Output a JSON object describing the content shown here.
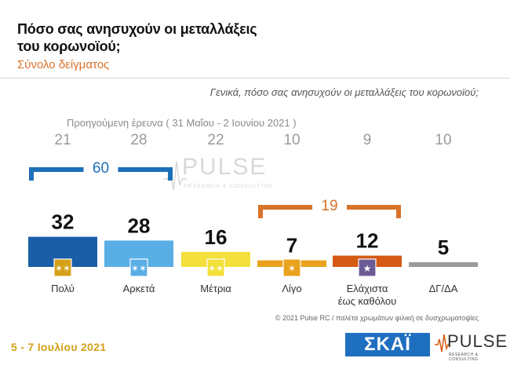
{
  "header": {
    "title_line1": "Πόσο σας ανησυχούν οι μεταλλάξεις",
    "title_line2": "του κορωνοϊού;",
    "subtitle": "Σύνολο δείγματος",
    "question": "Γενικά, πόσο σας ανησυχούν οι μεταλλάξεις του κορωνοϊού;",
    "previous_survey_label": "Προηγούμενη έρευνα ( 31 Μαΐου - 2 Ιουνίου 2021 )"
  },
  "chart_data": {
    "type": "bar",
    "categories": [
      "Πολύ",
      "Αρκετά",
      "Μέτρια",
      "Λίγο",
      "Ελάχιστα έως καθόλου",
      "ΔΓ/ΔΑ"
    ],
    "category_lines": [
      [
        "Πολύ"
      ],
      [
        "Αρκετά"
      ],
      [
        "Μέτρια"
      ],
      [
        "Λίγο"
      ],
      [
        "Ελάχιστα",
        "έως καθόλου"
      ],
      [
        "ΔΓ/ΔΑ"
      ]
    ],
    "values": [
      32,
      28,
      16,
      7,
      12,
      5
    ],
    "previous_values": [
      21,
      28,
      22,
      10,
      9,
      10
    ],
    "colors": [
      "#1a5ea8",
      "#5aaee6",
      "#f3e03a",
      "#e8a21c",
      "#d55a14",
      "#9b9b9b"
    ],
    "groups": [
      {
        "value": 60,
        "from": 0,
        "to": 1,
        "color": "#1d6fb8"
      },
      {
        "value": 19,
        "from": 3,
        "to": 4,
        "color": "#d9722b"
      }
    ],
    "ylim": [
      0,
      40
    ]
  },
  "watermark": {
    "brand": "PULSE",
    "tagline": "RESEARCH & CONSULTING"
  },
  "footer": {
    "date": "5 - 7 Ιουλίου 2021",
    "copyright": "© 2021 Pulse RC  /  παλέτα χρωμάτων φιλική σε δυσχρωματοψίες",
    "logo_skai": "ΣΚΑΪ",
    "logo_pulse": "PULSE",
    "logo_pulse_sub": "RESEARCH & CONSULTING"
  }
}
